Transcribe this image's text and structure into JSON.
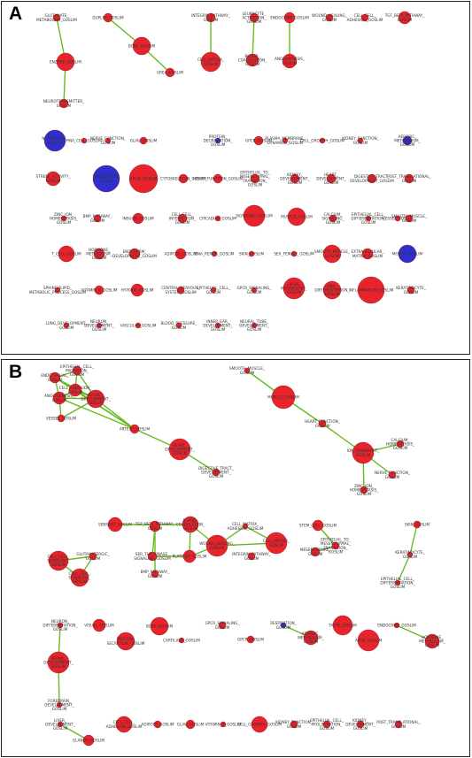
{
  "panels": [
    {
      "letter": "A",
      "colors": {
        "red": "#e8232b",
        "blue": "#2f2fd0",
        "edge": "#66bb1f"
      },
      "nodes": [
        {
          "id": "a1",
          "label": "GLUTAMATE_ METABOLISM_GOSLIM",
          "color": "red"
        },
        {
          "id": "a2",
          "label": "DUPLEX_GOSLIM",
          "color": "red"
        },
        {
          "id": "a3",
          "label": "ENZYME_GOSLIM",
          "color": "red"
        },
        {
          "id": "a4",
          "label": "NEUROTRANSMITTER_ GOSLIM",
          "color": "red"
        },
        {
          "id": "a5",
          "label": "BONE_GOSLIM",
          "color": "red"
        },
        {
          "id": "a6",
          "label": "UREA_GOSLIM",
          "color": "red"
        },
        {
          "id": "a7",
          "label": "INTEGRIN_PATHWAY_ GOSLIM",
          "color": "red"
        },
        {
          "id": "a8",
          "label": "CELL_MATRIX_ GOSLIM",
          "color": "red"
        },
        {
          "id": "a9",
          "label": "LEUKOCYTE_ ACTIVATION_ GOSLIM",
          "color": "red"
        },
        {
          "id": "a10",
          "label": "BLOOD_ COAGULATION_ GOSLIM",
          "color": "red"
        },
        {
          "id": "a11",
          "label": "ENDOCRINE_GOSLIM",
          "color": "red"
        },
        {
          "id": "a12",
          "label": "ANGIOGENESIS_ GOSLIM",
          "color": "red"
        },
        {
          "id": "a13",
          "label": "WOUND_HEALING_ GOSLIM",
          "color": "red"
        },
        {
          "id": "a14",
          "label": "CELL_CELL_ ADHESION_GOSLIM",
          "color": "red"
        },
        {
          "id": "a15",
          "label": "TGF_BETA_PATHWAY_ GOSLIM",
          "color": "red"
        },
        {
          "id": "a16",
          "label": "NUCLEOTIDE_ GOSLIM",
          "color": "blue"
        },
        {
          "id": "a17",
          "label": "RNA_CELL_GOSLIM",
          "color": "red"
        },
        {
          "id": "a18",
          "label": "NERVE_FUNCTION_ GOSLIM",
          "color": "red"
        },
        {
          "id": "a19",
          "label": "GLIAL_GOSLIM",
          "color": "red"
        },
        {
          "id": "a20",
          "label": "PROTEIN_ DEGRADATION_ GOSLIM",
          "color": "blue"
        },
        {
          "id": "a21",
          "label": "GPCR_GOSLIM",
          "color": "red"
        },
        {
          "id": "a22",
          "label": "PLASMA_MEMBRANE_ DYNAMICS_GOSLIM",
          "color": "red"
        },
        {
          "id": "a23",
          "label": "CELL_GROWTH_GOSLIM",
          "color": "red"
        },
        {
          "id": "a24",
          "label": "KIDNEY_FUNCTION_ GOSLIM",
          "color": "red"
        },
        {
          "id": "a25",
          "label": "AEROBIC_ METABOLISM_ GOSLIM",
          "color": "blue"
        },
        {
          "id": "a26",
          "label": "STRESS_ACTIVITY_ GOSLIM",
          "color": "red"
        },
        {
          "id": "a27",
          "label": "TRANSLATION_ GOSLIM",
          "color": "blue"
        },
        {
          "id": "a28",
          "label": "AXON_GOSLIM",
          "color": "red"
        },
        {
          "id": "a29",
          "label": "CYTOSKELETON_GOSLIM",
          "color": "red"
        },
        {
          "id": "a30",
          "label": "HEART_FUNCTION_GOSLIM",
          "color": "red"
        },
        {
          "id": "a31",
          "label": "EPITHELIAL_TO_ MESENCHYMAL_ TRANSITION_ GOSLIM",
          "color": "red"
        },
        {
          "id": "a32",
          "label": "KIDNEY_ DEVELOPMENT_ GOSLIM",
          "color": "red"
        },
        {
          "id": "a33",
          "label": "HEART_ DEVELOPMENT_ GOSLIM",
          "color": "red"
        },
        {
          "id": "a34",
          "label": "DIGESTIVE_TRACT_ DEVELOPMENT_GOSLIM",
          "color": "red"
        },
        {
          "id": "a35",
          "label": "POST_TRANSLATIONAL_ GOSLIM",
          "color": "red"
        },
        {
          "id": "a36",
          "label": "ZINC_ION_ HOMEOSTASIS_ GOSLIM",
          "color": "red"
        },
        {
          "id": "a37",
          "label": "BMP_PATHWAY_ GOSLIM",
          "color": "red"
        },
        {
          "id": "a38",
          "label": "INSULIN_GOSLIM",
          "color": "red"
        },
        {
          "id": "a39",
          "label": "CELL_CELL_ INTERACTION_ GOSLIM",
          "color": "red"
        },
        {
          "id": "a40",
          "label": "CIRCADIAN_GOSLIM",
          "color": "red"
        },
        {
          "id": "a41",
          "label": "SIGNALING_GOSLIM",
          "color": "red"
        },
        {
          "id": "a42",
          "label": "MUSCLE_GOSLIM",
          "color": "red"
        },
        {
          "id": "a43",
          "label": "CALCIUM_ SIGNALING_ GOSLIM",
          "color": "red"
        },
        {
          "id": "a44",
          "label": "EPITHELIAL_CELL_ DIFFERENTIATION_ GOSLIM",
          "color": "red"
        },
        {
          "id": "a45",
          "label": "VESSEL_GOSLIM",
          "color": "red"
        },
        {
          "id": "a46",
          "label": "SMOOTH_MUSCLE_ GOSLIM",
          "color": "red"
        },
        {
          "id": "a47",
          "label": "T_CELL_GOSLIM",
          "color": "red"
        },
        {
          "id": "a48",
          "label": "HORMONE_ METABOLISM_ GOSLIM",
          "color": "red"
        },
        {
          "id": "a49",
          "label": "ENDODERM_ DEVELOPMENT_GOSLIM",
          "color": "red"
        },
        {
          "id": "a50",
          "label": "ADIPOSE_GOSLIM",
          "color": "red"
        },
        {
          "id": "a51",
          "label": "DNA_REPAIR_GOSLIM",
          "color": "red"
        },
        {
          "id": "a52",
          "label": "SKIN_GOSLIM",
          "color": "red"
        },
        {
          "id": "a53",
          "label": "SEX_FEMALE_GOSLIM",
          "color": "red"
        },
        {
          "id": "a54",
          "label": "SMOOTH_MUSCLE_ GOSLIM",
          "color": "red"
        },
        {
          "id": "a55",
          "label": "EXTRACELLULAR_ MATRIX_GOSLIM",
          "color": "red"
        },
        {
          "id": "a56",
          "label": "MOTOR_GOSLIM",
          "color": "blue"
        },
        {
          "id": "a57",
          "label": "SPHINGOLIPID_ METABOLIC_PROCESS_GOSLIM",
          "color": "red"
        },
        {
          "id": "a58",
          "label": "VITAMIN_D_GOSLIM",
          "color": "red"
        },
        {
          "id": "a59",
          "label": "HYPOXIA_GOSLIM",
          "color": "red"
        },
        {
          "id": "a60",
          "label": "CENTRAL_NERVOUS_ SYSTEM_GOSLIM",
          "color": "red"
        },
        {
          "id": "a61",
          "label": "EPITHELIAL_CELL_ GOSLIM",
          "color": "red"
        },
        {
          "id": "a62",
          "label": "GPCR_SIGNALING_ GOSLIM",
          "color": "red"
        },
        {
          "id": "a63",
          "label": "LIPIDS_ METABOLISM_ GOSLIM",
          "color": "red"
        },
        {
          "id": "a64",
          "label": "DNA_ DIFFERENTIATION_ GOSLIM",
          "color": "red"
        },
        {
          "id": "a65",
          "label": "INFLAMMATION_GOSLIM",
          "color": "red"
        },
        {
          "id": "a66",
          "label": "KERATINOCYTE_ GOSLIM",
          "color": "red"
        },
        {
          "id": "a67",
          "label": "LUNG_DEVELOPMENT_ GOSLIM",
          "color": "red"
        },
        {
          "id": "a68",
          "label": "NEURON_ DEVELOPMENT_ GOSLIM",
          "color": "red"
        },
        {
          "id": "a69",
          "label": "VASCULAR_GOSLIM",
          "color": "red"
        },
        {
          "id": "a70",
          "label": "BLOOD_PRESSURE_ GOSLIM",
          "color": "red"
        },
        {
          "id": "a71",
          "label": "INNER_EAR_ DEVELOPMENT_ GOSLIM",
          "color": "red"
        },
        {
          "id": "a72",
          "label": "NEURAL_TUBE_ DEVELOPMENT_ GOSLIM",
          "color": "red"
        }
      ],
      "edges": [
        [
          "a1",
          "a3"
        ],
        [
          "a2",
          "a5"
        ],
        [
          "a5",
          "a6"
        ],
        [
          "a3",
          "a4"
        ],
        [
          "a7",
          "a8"
        ],
        [
          "a9",
          "a10"
        ],
        [
          "a11",
          "a12"
        ]
      ]
    },
    {
      "letter": "B",
      "colors": {
        "red": "#e8232b",
        "blue": "#2f2fd0",
        "edge": "#66bb1f"
      },
      "nodes": [
        {
          "id": "b1",
          "label": "ENDOTHELIAL_ GOSLIM",
          "color": "red"
        },
        {
          "id": "b2",
          "label": "EPITHELIAL_CELL_ MIGRATION_ GOSLIM",
          "color": "red"
        },
        {
          "id": "b3",
          "label": "ANGIOGENESIS_ GOSLIM",
          "color": "red"
        },
        {
          "id": "b4",
          "label": "CELL_ADHESION_ GOSLIM",
          "color": "red"
        },
        {
          "id": "b5",
          "label": "VESSEL_GOSLIM",
          "color": "red"
        },
        {
          "id": "b6",
          "label": "BLOOD_ DEVELOPMENT_ GOSLIM",
          "color": "red"
        },
        {
          "id": "b7",
          "label": "ARTERY_GOSLIM",
          "color": "red"
        },
        {
          "id": "b8",
          "label": "HEART_ DEVELOPMENT_ GOSLIM",
          "color": "red"
        },
        {
          "id": "b9",
          "label": "DIGESTIVE_TRACT_ DEVELOPMENT_ GOSLIM",
          "color": "red"
        },
        {
          "id": "b10",
          "label": "SMOOTH_MUSCLE_ GOSLIM",
          "color": "red"
        },
        {
          "id": "b11",
          "label": "MUSCLE_GOSLIM",
          "color": "red"
        },
        {
          "id": "b12",
          "label": "HEART_FUNCTION_ GOSLIM",
          "color": "red"
        },
        {
          "id": "b13",
          "label": "ION_TRANSPORT_ GOSLIM",
          "color": "red"
        },
        {
          "id": "b14",
          "label": "CALCIUM_ HOMEOSTASIS_ GOSLIM",
          "color": "red"
        },
        {
          "id": "b15",
          "label": "NERVE_FUNCTION_ GOSLIM",
          "color": "red"
        },
        {
          "id": "b16",
          "label": "ZINC_ION_ HOMEOSTASIS_ GOSLIM",
          "color": "red"
        },
        {
          "id": "b17",
          "label": "SENSORY_GOSLIM",
          "color": "red"
        },
        {
          "id": "b18",
          "label": "TGF_BETA_PATHWAY_ GOSLIM",
          "color": "red"
        },
        {
          "id": "b19",
          "label": "BLOOD_ COAGULATION_ GOSLIM",
          "color": "red"
        },
        {
          "id": "b20",
          "label": "GLUTAMATERGIC_ GOSLIM",
          "color": "red"
        },
        {
          "id": "b21",
          "label": "CELL_CELL_ SIGNALING_ GOSLIM",
          "color": "red"
        },
        {
          "id": "b22",
          "label": "SER_THR_KINASE_ SIGNALING_GOSLIM",
          "color": "red"
        },
        {
          "id": "b23",
          "label": "PLATELET_GOSLIM",
          "color": "red"
        },
        {
          "id": "b24",
          "label": "WOUND_HEALING_ GOSLIM",
          "color": "red"
        },
        {
          "id": "b25",
          "label": "CELL_MATRIX_ ADHESION_GOSLIM",
          "color": "red"
        },
        {
          "id": "b26",
          "label": "INTEGRIN_PATHWAY_ GOSLIM",
          "color": "red"
        },
        {
          "id": "b27",
          "label": "CELL_MATRIX_ GOSLIM",
          "color": "red"
        },
        {
          "id": "b28",
          "label": "BMP_PATHWAY_ GOSLIM",
          "color": "red"
        },
        {
          "id": "b29",
          "label": "STEM_CELL_GOSLIM",
          "color": "red"
        },
        {
          "id": "b30",
          "label": "MESENCHYMAL_ GOSLIM",
          "color": "red"
        },
        {
          "id": "b31",
          "label": "EPITHELIAL_TO_ MESENCHYMAL_ TRANSITION_ GOSLIM",
          "color": "red"
        },
        {
          "id": "b32",
          "label": "SKIN_GOSLIM",
          "color": "red"
        },
        {
          "id": "b33",
          "label": "KERATINOCYTE_ GOSLIM",
          "color": "red"
        },
        {
          "id": "b34",
          "label": "EPITHELIAL_CELL_ DIFFERENTIATION_ GOSLIM",
          "color": "red"
        },
        {
          "id": "b35",
          "label": "CELL_CELL_ SIGNALING_ GOSLIM",
          "color": "red"
        },
        {
          "id": "b36",
          "label": "NEURON_ DIFFERENTIATION_ GOSLIM",
          "color": "red"
        },
        {
          "id": "b37",
          "label": "VISUAL_GOSLIM",
          "color": "red"
        },
        {
          "id": "b38",
          "label": "PROTEIN_ SECRETION_GOSLIM",
          "color": "red"
        },
        {
          "id": "b39",
          "label": "BONE_GOSLIM",
          "color": "red"
        },
        {
          "id": "b40",
          "label": "CARTILAGE_GOSLIM",
          "color": "red"
        },
        {
          "id": "b41",
          "label": "GPCR_SIGNALING_ GOSLIM",
          "color": "red"
        },
        {
          "id": "b42",
          "label": "GPCR_GOSLIM",
          "color": "red"
        },
        {
          "id": "b43",
          "label": "RESPIRATION_ GOSLIM",
          "color": "blue"
        },
        {
          "id": "b44",
          "label": "AEROBIC_ METABOLISM_ GOSLIM",
          "color": "red"
        },
        {
          "id": "b45",
          "label": "TASTE_GOSLIM",
          "color": "red"
        },
        {
          "id": "b46",
          "label": "AXON_GOSLIM",
          "color": "red"
        },
        {
          "id": "b47",
          "label": "ENDOCRINE_GOSLIM",
          "color": "red"
        },
        {
          "id": "b48",
          "label": "HORMONE_ METABOLISM_ GOSLIM",
          "color": "red"
        },
        {
          "id": "b49",
          "label": "BRAIN_ DEVELOPMENT_ GOSLIM",
          "color": "red"
        },
        {
          "id": "b50",
          "label": "FOREBRAIN_ DEVELOPMENT_ GOSLIM",
          "color": "red"
        },
        {
          "id": "b51",
          "label": "LIVER_ DEVELOPMENT_ GOSLIM",
          "color": "red"
        },
        {
          "id": "b52",
          "label": "GLANDS_GOSLIM",
          "color": "red"
        },
        {
          "id": "b53",
          "label": "CELL_CELL_ ADHESION_GOSLIM",
          "color": "red"
        },
        {
          "id": "b54",
          "label": "ADIPOSE_GOSLIM",
          "color": "red"
        },
        {
          "id": "b55",
          "label": "GLIAL_GOSLIM",
          "color": "red"
        },
        {
          "id": "b56",
          "label": "VITAMIN_D_GOSLIM",
          "color": "red"
        },
        {
          "id": "b57",
          "label": "CELL_GROWTH_GOSLIM",
          "color": "red"
        },
        {
          "id": "b58",
          "label": "KIDNEY_FUNCTION_ GOSLIM",
          "color": "red"
        },
        {
          "id": "b59",
          "label": "EPITHELIAL_CELL_ PROLIFERATION_ GOSLIM",
          "color": "red"
        },
        {
          "id": "b60",
          "label": "KIDNEY_ DEVELOPMENT_ GOSLIM",
          "color": "red"
        },
        {
          "id": "b61",
          "label": "POST_TRANSLATIONAL_ GOSLIM",
          "color": "red"
        }
      ],
      "edges": [
        [
          "b1",
          "b2"
        ],
        [
          "b1",
          "b3"
        ],
        [
          "b1",
          "b4"
        ],
        [
          "b1",
          "b6"
        ],
        [
          "b2",
          "b4"
        ],
        [
          "b2",
          "b6"
        ],
        [
          "b3",
          "b4"
        ],
        [
          "b3",
          "b5"
        ],
        [
          "b3",
          "b6"
        ],
        [
          "b4",
          "b6"
        ],
        [
          "b4",
          "b7"
        ],
        [
          "b6",
          "b7"
        ],
        [
          "b5",
          "b6"
        ],
        [
          "b7",
          "b8"
        ],
        [
          "b8",
          "b9"
        ],
        [
          "b1",
          "b7"
        ],
        [
          "b3",
          "b7"
        ],
        [
          "b10",
          "b11"
        ],
        [
          "b11",
          "b12"
        ],
        [
          "b12",
          "b13"
        ],
        [
          "b13",
          "b14"
        ],
        [
          "b13",
          "b15"
        ],
        [
          "b13",
          "b16"
        ],
        [
          "b17",
          "b19"
        ],
        [
          "b18",
          "b22"
        ],
        [
          "b18",
          "b28"
        ],
        [
          "b19",
          "b24"
        ],
        [
          "b19",
          "b23"
        ],
        [
          "b22",
          "b23"
        ],
        [
          "b23",
          "b24"
        ],
        [
          "b24",
          "b27"
        ],
        [
          "b25",
          "b27"
        ],
        [
          "b24",
          "b25"
        ],
        [
          "b20",
          "b21"
        ],
        [
          "b20",
          "b35"
        ],
        [
          "b21",
          "b35"
        ],
        [
          "b29",
          "b31"
        ],
        [
          "b30",
          "b31"
        ],
        [
          "b32",
          "b33"
        ],
        [
          "b33",
          "b34"
        ],
        [
          "b43",
          "b44"
        ],
        [
          "b47",
          "b48"
        ],
        [
          "b36",
          "b49"
        ],
        [
          "b49",
          "b50"
        ],
        [
          "b51",
          "b52"
        ]
      ]
    }
  ]
}
